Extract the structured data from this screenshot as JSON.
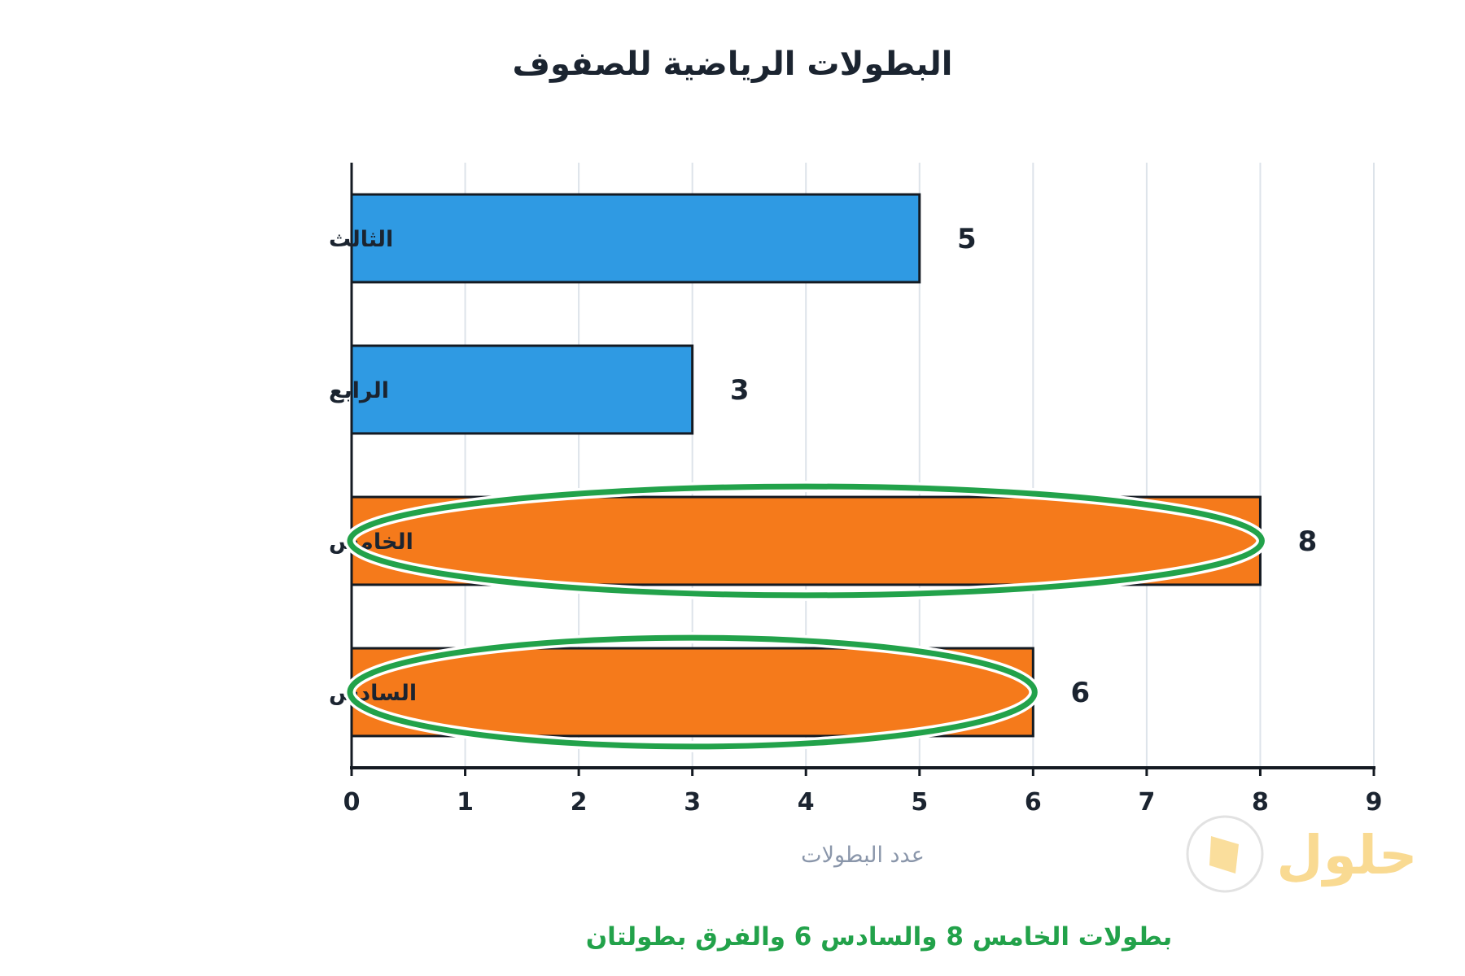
{
  "chart_data": {
    "type": "bar",
    "orientation": "horizontal",
    "title": "البطولات الرياضية للصفوف",
    "xlabel": "عدد البطولات",
    "categories": [
      "الثالث",
      "الرابع",
      "الخامس",
      "السادس"
    ],
    "values": [
      5,
      3,
      8,
      6
    ],
    "colors": [
      "#2f9ae3",
      "#2f9ae3",
      "#f57a1b",
      "#f57a1b"
    ],
    "xlim": [
      0,
      9
    ],
    "xticks": [
      0,
      1,
      2,
      3,
      4,
      5,
      6,
      7,
      8,
      9
    ],
    "grid": "vertical",
    "highlighted": [
      "الخامس",
      "السادس"
    ],
    "highlight_color": "#22a24a"
  },
  "caption": {
    "pre": "بطولات الخامس ",
    "n1": "8",
    "mid": " والسادس ",
    "n2": "6",
    "post": " والفرق بطولتان"
  },
  "logo": {
    "text": "حلول"
  }
}
